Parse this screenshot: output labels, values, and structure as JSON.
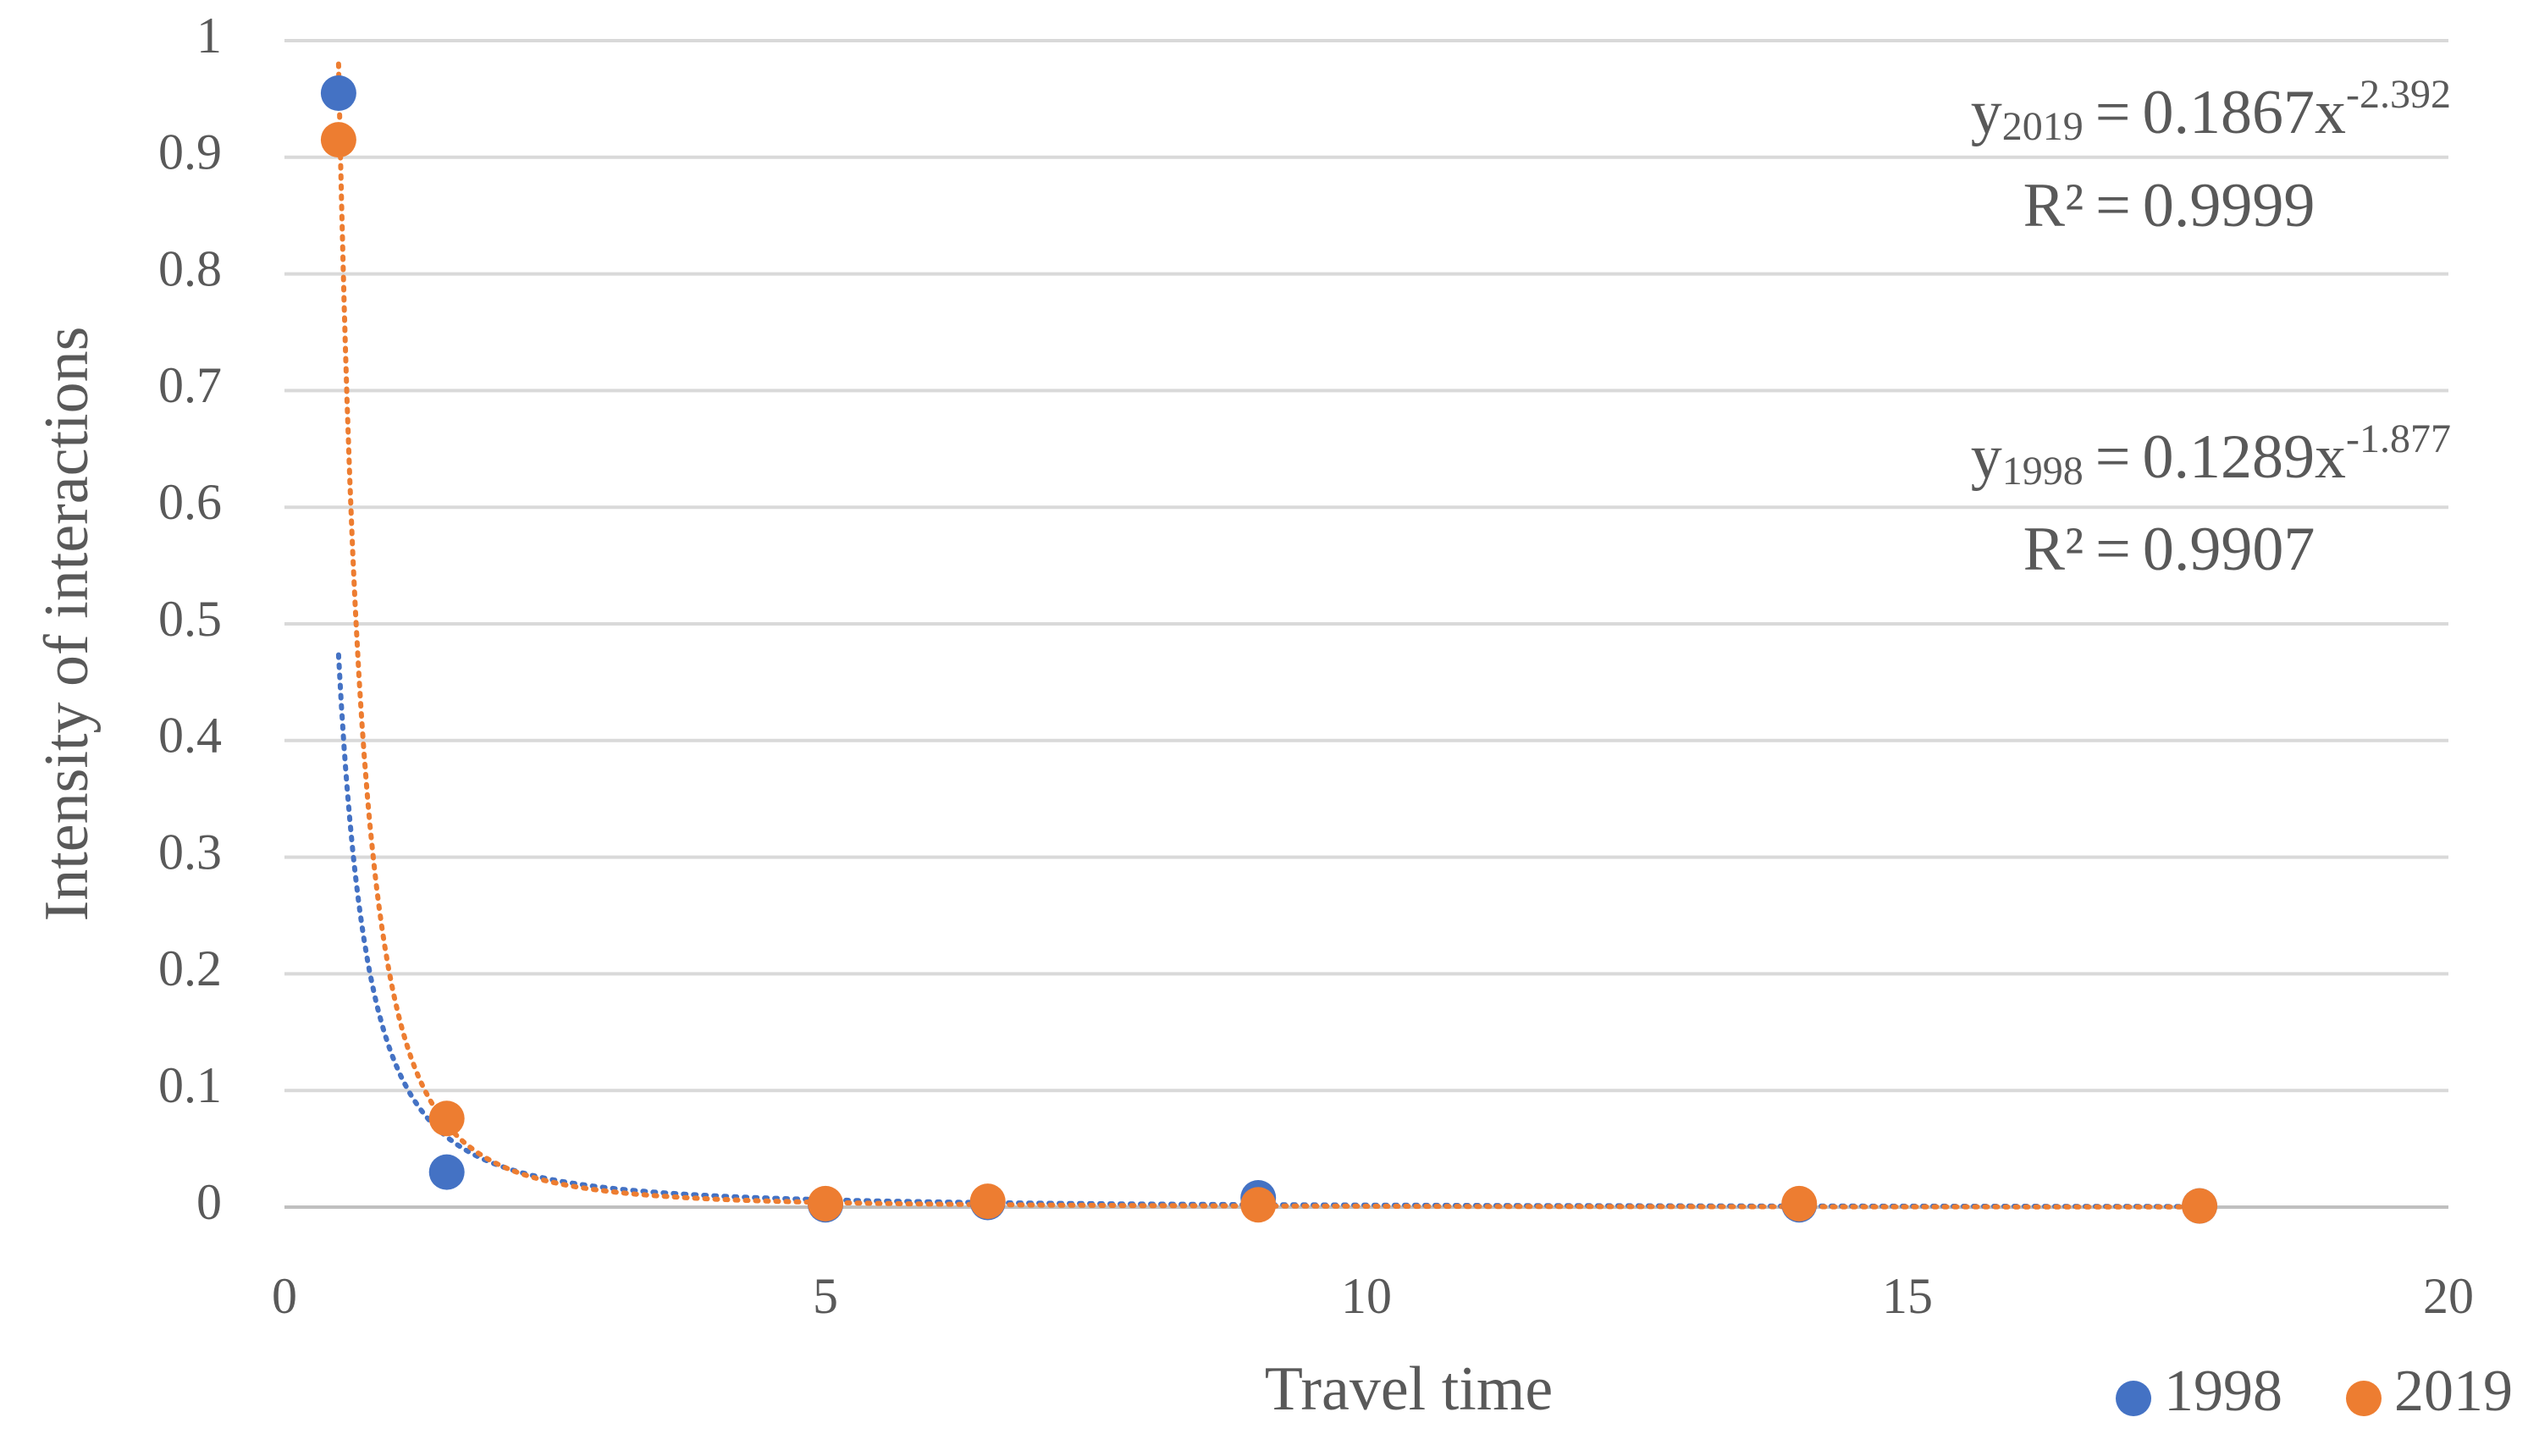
{
  "chart_data": {
    "type": "scatter",
    "x_label": "Travel time",
    "y_label": "Intensity of interactions",
    "x": [
      0.5,
      1.5,
      5,
      6.5,
      9,
      14,
      17.7
    ],
    "series": [
      {
        "name": "1998",
        "color": "#4472c4",
        "values": [
          0.955,
          0.03,
          0.002,
          0.004,
          0.008,
          0.002,
          0.001
        ],
        "trendline": {
          "coefficient": 0.1289,
          "exponent": -1.877,
          "r_squared": 0.9907
        }
      },
      {
        "name": "2019",
        "color": "#ed7d31",
        "values": [
          0.915,
          0.076,
          0.003,
          0.005,
          0.002,
          0.003,
          0.001
        ],
        "trendline": {
          "coefficient": 0.1867,
          "exponent": -2.392,
          "r_squared": 0.9999
        }
      }
    ],
    "trendline_symbols": {
      "y": "y",
      "x": "x",
      "equals": "=",
      "r_squared": "R²"
    },
    "xlim": [
      0,
      20
    ],
    "xticks": [
      0,
      5,
      10,
      15,
      20
    ],
    "ylim": [
      0,
      1
    ],
    "yticks": [
      0,
      0.1,
      0.2,
      0.3,
      0.4,
      0.5,
      0.6,
      0.7,
      0.8,
      0.9,
      1
    ],
    "grid": true,
    "legend": "bottom-right"
  }
}
